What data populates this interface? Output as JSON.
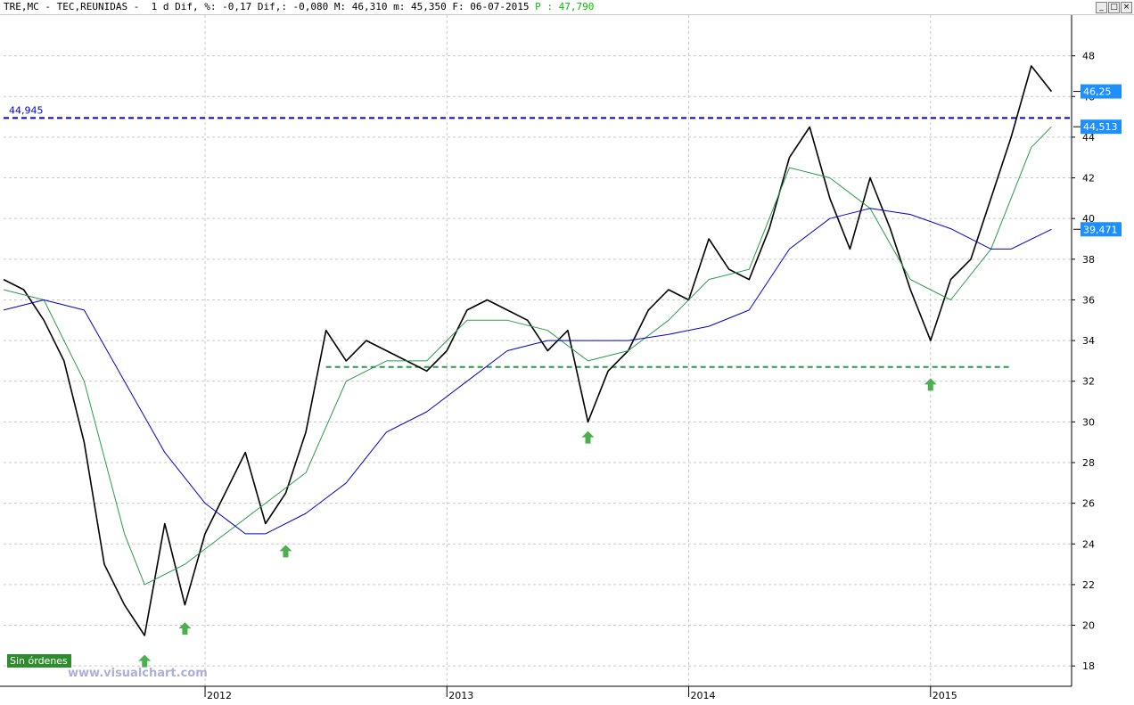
{
  "header": {
    "ticker": "TRE,MC",
    "sep1": " - ",
    "name": "TEC,REUNIDAS",
    "sep2": " -  ",
    "period": "1 d",
    "info": " Dif, %: -0,17 Dif,: -0,080 M: 46,310 m: 45,350 F: 06-07-2015 ",
    "price": "P : 47,790"
  },
  "window_controls": {
    "minimize": "_",
    "maximize": "□",
    "close": "×"
  },
  "watermark": "www.visualchart.com",
  "status_badge": "Sin órdenes",
  "colors": {
    "price": "#000000",
    "ma_short": "#2a9a4a",
    "ma_long": "#0000c8",
    "resistance": "#0000c8",
    "support": "#2a9a4a",
    "arrow": "#4caf50",
    "badge": "#2e8b2e",
    "tag": "#1e8fff"
  },
  "chart_data": {
    "type": "line",
    "title": "TEC,REUNIDAS",
    "x_range": [
      "2011-03",
      "2015-07"
    ],
    "ylim": [
      17,
      50
    ],
    "y_ticks": [
      "18",
      "20",
      "22",
      "24",
      "26",
      "28",
      "30",
      "32",
      "34",
      "36",
      "38",
      "40",
      "42",
      "44",
      "46",
      "48"
    ],
    "x_ticks": [
      {
        "label": "2012",
        "date": "2012-01"
      },
      {
        "label": "2013",
        "date": "2013-01"
      },
      {
        "label": "2014",
        "date": "2014-01"
      },
      {
        "label": "2015",
        "date": "2015-01"
      }
    ],
    "grid": true,
    "series": [
      {
        "role": "price",
        "x": [
          "2011-03",
          "2011-04",
          "2011-05",
          "2011-06",
          "2011-07",
          "2011-08",
          "2011-09",
          "2011-10",
          "2011-11",
          "2011-12",
          "2012-01",
          "2012-02",
          "2012-03",
          "2012-04",
          "2012-05",
          "2012-06",
          "2012-07",
          "2012-08",
          "2012-09",
          "2012-10",
          "2012-11",
          "2012-12",
          "2013-01",
          "2013-02",
          "2013-03",
          "2013-04",
          "2013-05",
          "2013-06",
          "2013-07",
          "2013-08",
          "2013-09",
          "2013-10",
          "2013-11",
          "2013-12",
          "2014-01",
          "2014-02",
          "2014-03",
          "2014-04",
          "2014-05",
          "2014-06",
          "2014-07",
          "2014-08",
          "2014-09",
          "2014-10",
          "2014-11",
          "2014-12",
          "2015-01",
          "2015-02",
          "2015-03",
          "2015-04",
          "2015-05",
          "2015-06",
          "2015-07"
        ],
        "values": [
          37.0,
          36.5,
          35.0,
          33.0,
          29.0,
          23.0,
          21.0,
          19.5,
          25.0,
          21.0,
          24.5,
          26.5,
          28.5,
          25.0,
          26.5,
          29.5,
          34.5,
          33.0,
          34.0,
          33.5,
          33.0,
          32.5,
          33.5,
          35.5,
          36.0,
          35.5,
          35.0,
          33.5,
          34.5,
          30.0,
          32.5,
          33.5,
          35.5,
          36.5,
          36.0,
          39.0,
          37.5,
          37.0,
          39.5,
          43.0,
          44.5,
          41.0,
          38.5,
          42.0,
          39.5,
          36.5,
          34.0,
          37.0,
          38.0,
          41.0,
          44.0,
          47.5,
          46.25
        ]
      },
      {
        "role": "ma_short",
        "x": [
          "2011-03",
          "2011-05",
          "2011-07",
          "2011-09",
          "2011-10",
          "2011-12",
          "2012-02",
          "2012-04",
          "2012-06",
          "2012-08",
          "2012-10",
          "2012-12",
          "2013-02",
          "2013-04",
          "2013-06",
          "2013-08",
          "2013-10",
          "2013-12",
          "2014-02",
          "2014-04",
          "2014-06",
          "2014-08",
          "2014-10",
          "2014-12",
          "2015-02",
          "2015-04",
          "2015-06",
          "2015-07"
        ],
        "values": [
          36.5,
          36.0,
          32.0,
          24.5,
          22.0,
          23.0,
          24.5,
          26.0,
          27.5,
          32.0,
          33.0,
          33.0,
          35.0,
          35.0,
          34.5,
          33.0,
          33.5,
          35.0,
          37.0,
          37.5,
          42.5,
          42.0,
          40.5,
          37.0,
          36.0,
          38.5,
          43.5,
          44.513
        ]
      },
      {
        "role": "ma_long",
        "x": [
          "2011-03",
          "2011-05",
          "2011-07",
          "2011-09",
          "2011-11",
          "2012-01",
          "2012-03",
          "2012-04",
          "2012-06",
          "2012-08",
          "2012-10",
          "2012-12",
          "2013-02",
          "2013-04",
          "2013-06",
          "2013-08",
          "2013-10",
          "2013-12",
          "2014-02",
          "2014-04",
          "2014-06",
          "2014-08",
          "2014-10",
          "2014-12",
          "2015-02",
          "2015-04",
          "2015-05",
          "2015-07"
        ],
        "values": [
          35.5,
          36.0,
          35.5,
          32.0,
          28.5,
          26.0,
          24.5,
          24.5,
          25.5,
          27.0,
          29.5,
          30.5,
          32.0,
          33.5,
          34.0,
          34.0,
          34.0,
          34.3,
          34.7,
          35.5,
          38.5,
          40.0,
          40.5,
          40.2,
          39.5,
          38.5,
          38.5,
          39.471
        ]
      }
    ],
    "reference_lines": [
      {
        "label": "44,945",
        "value": 44.945,
        "style": "dashed",
        "color": "#0000c8",
        "from": "2011-03",
        "to": "2015-08"
      },
      {
        "label": "",
        "value": 32.7,
        "style": "dashed",
        "color": "#2a9a4a",
        "from": "2012-07",
        "to": "2015-05"
      }
    ],
    "markers": [
      {
        "type": "up-arrow",
        "date": "2011-10",
        "value": 18.9
      },
      {
        "type": "up-arrow",
        "date": "2011-12",
        "value": 20.5
      },
      {
        "type": "up-arrow",
        "date": "2012-05",
        "value": 24.3
      },
      {
        "type": "up-arrow",
        "date": "2013-08",
        "value": 29.9
      },
      {
        "type": "up-arrow",
        "date": "2015-01",
        "value": 32.5
      }
    ],
    "price_tags": [
      {
        "label": "46,25",
        "value": 46.25
      },
      {
        "label": "44,513",
        "value": 44.513
      },
      {
        "label": "39,471",
        "value": 39.471
      }
    ]
  }
}
